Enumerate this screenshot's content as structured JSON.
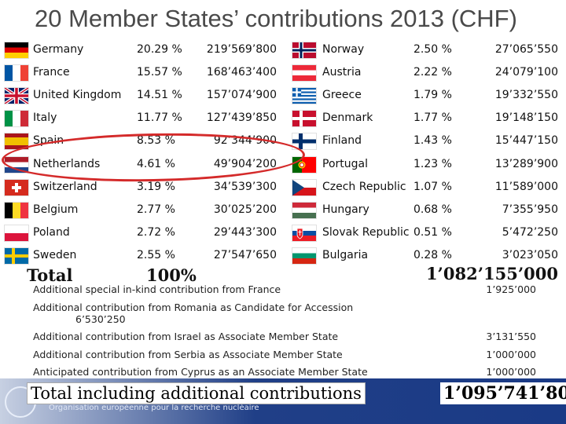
{
  "title": "20 Member States’ contributions 2013 (CHF)",
  "left_column": [
    {
      "country": "Germany",
      "flag": "germany-flag",
      "percent": "20.29 %",
      "amount": "219’569’800"
    },
    {
      "country": "France",
      "flag": "france-flag",
      "percent": "15.57 %",
      "amount": "168’463’400"
    },
    {
      "country": "United Kingdom",
      "flag": "united-kingdom-flag",
      "percent": "14.51 %",
      "amount": "157’074’900"
    },
    {
      "country": "Italy",
      "flag": "italy-flag",
      "percent": "11.77 %",
      "amount": "127’439’850"
    },
    {
      "country": "Spain",
      "flag": "spain-flag",
      "percent": "8.53 %",
      "amount": "92’344’900"
    },
    {
      "country": "Netherlands",
      "flag": "netherlands-flag",
      "percent": "4.61 %",
      "amount": "49’904’200"
    },
    {
      "country": "Switzerland",
      "flag": "switzerland-flag",
      "percent": "3.19 %",
      "amount": "34’539’300"
    },
    {
      "country": "Belgium",
      "flag": "belgium-flag",
      "percent": "2.77 %",
      "amount": "30’025’200"
    },
    {
      "country": "Poland",
      "flag": "poland-flag",
      "percent": "2.72 %",
      "amount": "29’443’300"
    },
    {
      "country": "Sweden",
      "flag": "sweden-flag",
      "percent": "2.55 %",
      "amount": "27’547’650"
    }
  ],
  "right_column": [
    {
      "country": "Norway",
      "flag": "norway-flag",
      "percent": "2.50 %",
      "amount": "27’065’550"
    },
    {
      "country": "Austria",
      "flag": "austria-flag",
      "percent": "2.22 %",
      "amount": "24’079’100"
    },
    {
      "country": "Greece",
      "flag": "greece-flag",
      "percent": "1.79 %",
      "amount": "19’332’550"
    },
    {
      "country": "Denmark",
      "flag": "denmark-flag",
      "percent": "1.77 %",
      "amount": "19’148’150"
    },
    {
      "country": "Finland",
      "flag": "finland-flag",
      "percent": "1.43 %",
      "amount": "15’447’150"
    },
    {
      "country": "Portugal",
      "flag": "portugal-flag",
      "percent": "1.23 %",
      "amount": "13’289’900"
    },
    {
      "country": "Czech Republic",
      "flag": "czech-flag",
      "percent": "1.07 %",
      "amount": "11’589’000"
    },
    {
      "country": "Hungary",
      "flag": "hungary-flag",
      "percent": "0.68 %",
      "amount": "7’355’950"
    },
    {
      "country": "Slovak Republic",
      "flag": "slovakia-flag",
      "percent": "0.51 %",
      "amount": "5’472’250"
    },
    {
      "country": "Bulgaria",
      "flag": "bulgaria-flag",
      "percent": "0.28 %",
      "amount": "3’023’050"
    }
  ],
  "total": {
    "label": "Total",
    "percent": "100%",
    "amount": "1’082’155’000"
  },
  "additional": [
    {
      "text": "Additional special in-kind contribution from France",
      "amount": "1’925’000"
    },
    {
      "text": "Additional contribution from Romania as Candidate for Accession",
      "amount": "6’530’250"
    },
    {
      "text": "Additional contribution from Israel as Associate Member State",
      "amount": "3’131’550"
    },
    {
      "text": "Additional contribution from Serbia as Associate Member State",
      "amount": "1’000’000"
    },
    {
      "text": "Anticipated contribution from Cyprus as an Associate Member State",
      "amount": "1’000’000"
    }
  ],
  "grand_total": {
    "label": "Total including additional contributions",
    "amount": "1’095’741’800"
  },
  "footer": {
    "text": "Organisation européenne pour la recherche nucléaire"
  },
  "colors": {
    "highlight_ring": "#d42a2a",
    "footer_band": "#1a3a86",
    "title": "#4a4a4a"
  }
}
